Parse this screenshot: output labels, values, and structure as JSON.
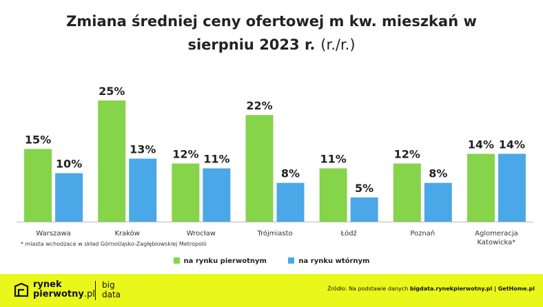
{
  "title": {
    "line1": "Zmiana średniej ceny ofertowej m kw. mieszkań w",
    "line2": "sierpniu 2023 r.",
    "suffix": "(r./r.)"
  },
  "chart_data": {
    "type": "bar",
    "categories": [
      "Warszawa",
      "Kraków",
      "Wrocław",
      "Trójmiasto",
      "Łódź",
      "Poznań",
      "Aglomeracja Katowicka*"
    ],
    "series": [
      {
        "name": "na rynku pierwotnym",
        "color": "#86d44a",
        "values": [
          15,
          25,
          12,
          22,
          11,
          12,
          14
        ],
        "labels": [
          "15%",
          "25%",
          "12%",
          "22%",
          "11%",
          "12%",
          "14%"
        ]
      },
      {
        "name": "na rynku wtórnym",
        "color": "#4aa8e8",
        "values": [
          10,
          13,
          11,
          8,
          5,
          8,
          14
        ],
        "labels": [
          "10%",
          "13%",
          "11%",
          "8%",
          "5%",
          "8%",
          "14%"
        ]
      }
    ],
    "ylim": [
      0,
      25
    ]
  },
  "note": "* miasta wchodzace w skład Górnośląsko-Zagłębiowskiej Metropolii",
  "legend": {
    "primary": "na rynku pierwotnym",
    "secondary": "na rynku wtórnym"
  },
  "footer": {
    "logo_line1": "rynek",
    "logo_line2": "pierwotny",
    "logo_suffix": ".pl",
    "bigdata_line1": "big",
    "bigdata_line2": "data",
    "source_prefix": "Źródło: Na podstawie danych",
    "source_sites": "bigdata.rynekpierwotny.pl | GetHome.pl"
  }
}
